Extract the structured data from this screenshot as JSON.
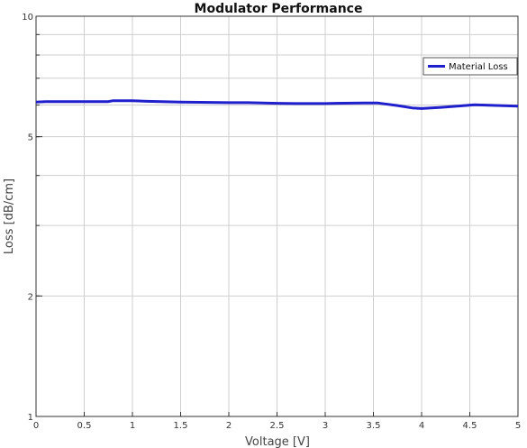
{
  "chart_data": {
    "type": "line",
    "title": "Modulator Performance",
    "xlabel": "Voltage [V]",
    "ylabel": "Loss [dB/cm]",
    "xlim": [
      0,
      5
    ],
    "ylim": [
      1,
      10
    ],
    "yscale": "log",
    "grid": true,
    "legend_position": "top-right",
    "x_ticks": [
      "0",
      "0.5",
      "1",
      "1.5",
      "2",
      "2.5",
      "3",
      "3.5",
      "4",
      "4.5",
      "5"
    ],
    "y_ticks": [
      "1",
      "2",
      "5",
      "10"
    ],
    "series": [
      {
        "name": "Material Loss",
        "color": "#1f1fcc",
        "x": [
          0,
          0.1,
          0.5,
          0.75,
          0.8,
          1.0,
          1.15,
          1.5,
          2.0,
          2.2,
          2.5,
          2.7,
          3.0,
          3.1,
          3.4,
          3.55,
          3.75,
          3.9,
          4.0,
          4.2,
          4.4,
          4.55,
          4.7,
          5.0
        ],
        "y": [
          6.1,
          6.12,
          6.12,
          6.12,
          6.15,
          6.15,
          6.13,
          6.1,
          6.08,
          6.08,
          6.06,
          6.05,
          6.05,
          6.06,
          6.07,
          6.07,
          5.98,
          5.9,
          5.88,
          5.92,
          5.97,
          6.01,
          5.99,
          5.96
        ]
      }
    ]
  }
}
